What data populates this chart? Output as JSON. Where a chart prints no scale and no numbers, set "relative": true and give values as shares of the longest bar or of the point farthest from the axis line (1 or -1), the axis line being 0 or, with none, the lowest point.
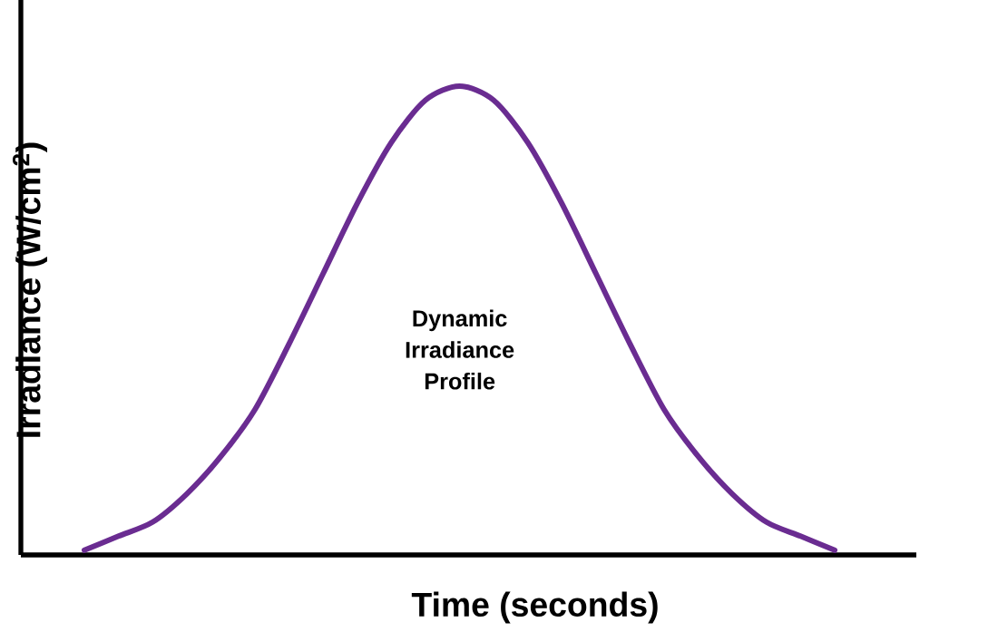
{
  "chart_data": {
    "type": "line",
    "relative": true,
    "xlabel": "Time (seconds)",
    "ylabel": "Irradiance (W/cm$^{2}$)",
    "annotations": [
      "Dynamic Irradiance Profile"
    ],
    "categories": [
      null,
      null,
      null,
      null,
      null,
      null,
      null,
      null,
      null,
      null,
      null,
      null,
      null,
      null,
      null,
      null,
      null,
      null,
      null,
      null,
      null,
      null,
      null
    ],
    "series": [
      {
        "color": "#6a2c91",
        "values": [
          0.01,
          0.04,
          0.07,
          0.13,
          0.21,
          0.31,
          0.45,
          0.6,
          0.75,
          0.88,
          0.97,
          1,
          0.97,
          0.88,
          0.75,
          0.6,
          0.45,
          0.31,
          0.21,
          0.13,
          0.07,
          0.04,
          0.01
        ]
      }
    ],
    "marker": "none",
    "line_style": "solid"
  }
}
